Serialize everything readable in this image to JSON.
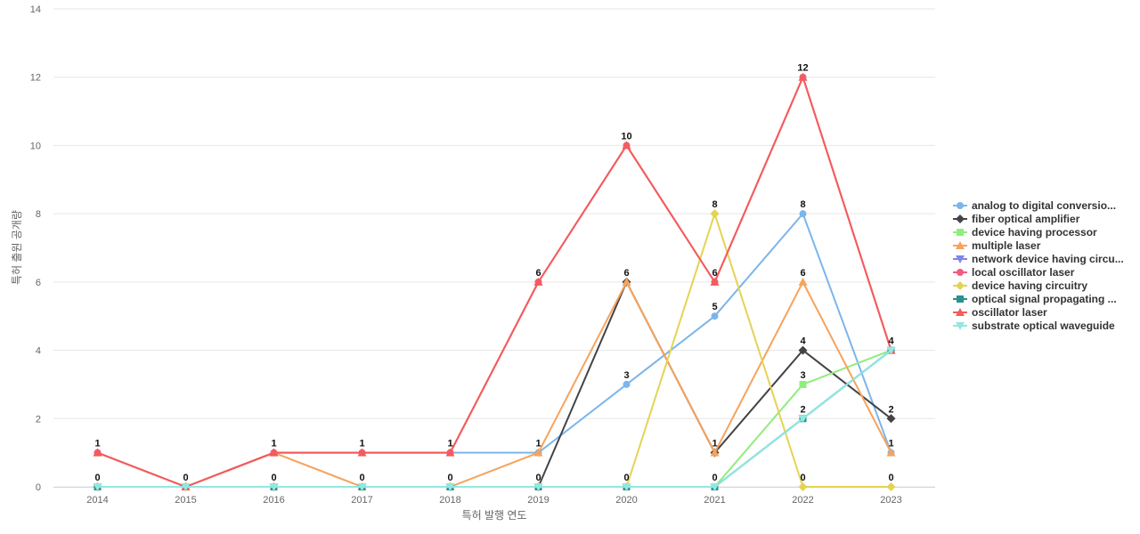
{
  "chart_data": {
    "type": "line",
    "xlabel": "특허 발행 연도",
    "ylabel": "특허 출원 공개량",
    "ylim": [
      0,
      14
    ],
    "yticks": [
      0,
      2,
      4,
      6,
      8,
      10,
      12,
      14
    ],
    "categories": [
      "2014",
      "2015",
      "2016",
      "2017",
      "2018",
      "2019",
      "2020",
      "2021",
      "2022",
      "2023"
    ],
    "grid": true,
    "legend_position": "right",
    "series": [
      {
        "name": "analog to digital conversio...",
        "color": "#7cb5ec",
        "marker": "circle",
        "values": [
          1,
          0,
          1,
          1,
          1,
          1,
          3,
          5,
          8,
          1
        ]
      },
      {
        "name": "fiber optical amplifier",
        "color": "#434348",
        "marker": "diamond",
        "values": [
          0,
          0,
          0,
          0,
          0,
          0,
          6,
          1,
          4,
          2
        ]
      },
      {
        "name": "device having processor",
        "color": "#90ed7d",
        "marker": "square",
        "values": [
          0,
          0,
          0,
          0,
          0,
          0,
          0,
          0,
          3,
          4
        ]
      },
      {
        "name": "multiple laser",
        "color": "#f7a35c",
        "marker": "triangle",
        "values": [
          1,
          0,
          1,
          0,
          0,
          1,
          6,
          1,
          6,
          1
        ]
      },
      {
        "name": "network device having circu...",
        "color": "#8085e9",
        "marker": "triangle-down",
        "values": [
          0,
          0,
          0,
          0,
          0,
          0,
          0,
          0,
          2,
          4
        ]
      },
      {
        "name": "local oscillator laser",
        "color": "#f15c80",
        "marker": "circle",
        "values": [
          1,
          0,
          1,
          1,
          1,
          6,
          10,
          6,
          12,
          4
        ]
      },
      {
        "name": "device having circuitry",
        "color": "#e4d354",
        "marker": "diamond",
        "values": [
          0,
          0,
          0,
          0,
          0,
          0,
          0,
          8,
          0,
          0
        ]
      },
      {
        "name": "optical signal propagating ...",
        "color": "#2b908f",
        "marker": "square",
        "values": [
          0,
          0,
          0,
          0,
          0,
          0,
          0,
          0,
          2,
          4
        ]
      },
      {
        "name": "oscillator laser",
        "color": "#f45b5b",
        "marker": "triangle",
        "values": [
          1,
          0,
          1,
          1,
          1,
          6,
          10,
          6,
          12,
          4
        ]
      },
      {
        "name": "substrate optical waveguide",
        "color": "#91e8e1",
        "marker": "triangle-down",
        "values": [
          0,
          0,
          0,
          0,
          0,
          0,
          0,
          0,
          2,
          4
        ]
      }
    ],
    "data_labels": [
      {
        "category": "2014",
        "value": 1
      },
      {
        "category": "2014",
        "value": 0
      },
      {
        "category": "2015",
        "value": 0
      },
      {
        "category": "2016",
        "value": 1
      },
      {
        "category": "2016",
        "value": 0
      },
      {
        "category": "2017",
        "value": 1
      },
      {
        "category": "2017",
        "value": 0
      },
      {
        "category": "2018",
        "value": 1
      },
      {
        "category": "2018",
        "value": 0
      },
      {
        "category": "2019",
        "value": 6
      },
      {
        "category": "2019",
        "value": 1
      },
      {
        "category": "2019",
        "value": 0
      },
      {
        "category": "2020",
        "value": 10
      },
      {
        "category": "2020",
        "value": 6
      },
      {
        "category": "2020",
        "value": 3
      },
      {
        "category": "2020",
        "value": 0
      },
      {
        "category": "2021",
        "value": 8
      },
      {
        "category": "2021",
        "value": 6
      },
      {
        "category": "2021",
        "value": 5
      },
      {
        "category": "2021",
        "value": 1
      },
      {
        "category": "2021",
        "value": 0
      },
      {
        "category": "2022",
        "value": 12
      },
      {
        "category": "2022",
        "value": 8
      },
      {
        "category": "2022",
        "value": 6
      },
      {
        "category": "2022",
        "value": 4
      },
      {
        "category": "2022",
        "value": 3
      },
      {
        "category": "2022",
        "value": 2
      },
      {
        "category": "2022",
        "value": 0
      },
      {
        "category": "2023",
        "value": 4
      },
      {
        "category": "2023",
        "value": 2
      },
      {
        "category": "2023",
        "value": 1
      },
      {
        "category": "2023",
        "value": 0
      }
    ]
  }
}
